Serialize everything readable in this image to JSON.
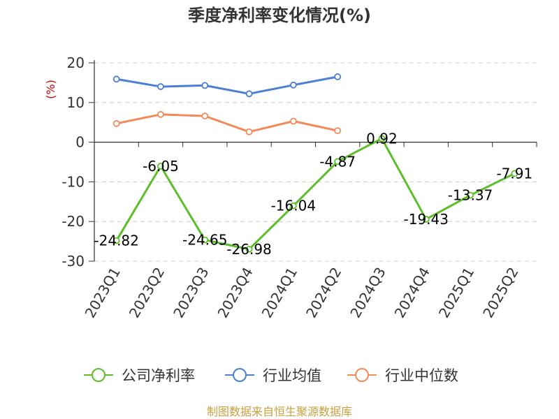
{
  "chart_data": {
    "type": "line",
    "title": "季度净利率变化情况(%)",
    "ylabel": "(%)",
    "xlabel": "",
    "ylim": [
      -30,
      20
    ],
    "yticks": [
      20,
      10,
      0,
      -10,
      -20,
      -30
    ],
    "categories": [
      "2023Q1",
      "2023Q2",
      "2023Q3",
      "2023Q4",
      "2024Q1",
      "2024Q2",
      "2024Q3",
      "2024Q4",
      "2025Q1",
      "2025Q2"
    ],
    "series": [
      {
        "name": "公司净利率",
        "color": "#5cbf2a",
        "values": [
          -24.82,
          -6.05,
          -24.65,
          -26.98,
          -16.04,
          -4.87,
          0.92,
          -19.43,
          -13.37,
          -7.91
        ],
        "labels": [
          "-24.82",
          "-6.05",
          "-24.65",
          "-26.98",
          "-16.04",
          "-4.87",
          "0.92",
          "-19.43",
          "-13.37",
          "-7.91"
        ]
      },
      {
        "name": "行业均值",
        "color": "#4a7fd4",
        "values": [
          15.9,
          14.0,
          14.3,
          12.2,
          14.4,
          16.5,
          null,
          null,
          null,
          null
        ]
      },
      {
        "name": "行业中位数",
        "color": "#f28a5a",
        "values": [
          4.7,
          7.0,
          6.6,
          2.6,
          5.3,
          2.9,
          null,
          null,
          null,
          null
        ]
      }
    ],
    "grid": true,
    "legend_position": "bottom"
  },
  "footer": {
    "source": "制图数据来自恒生聚源数据库"
  }
}
